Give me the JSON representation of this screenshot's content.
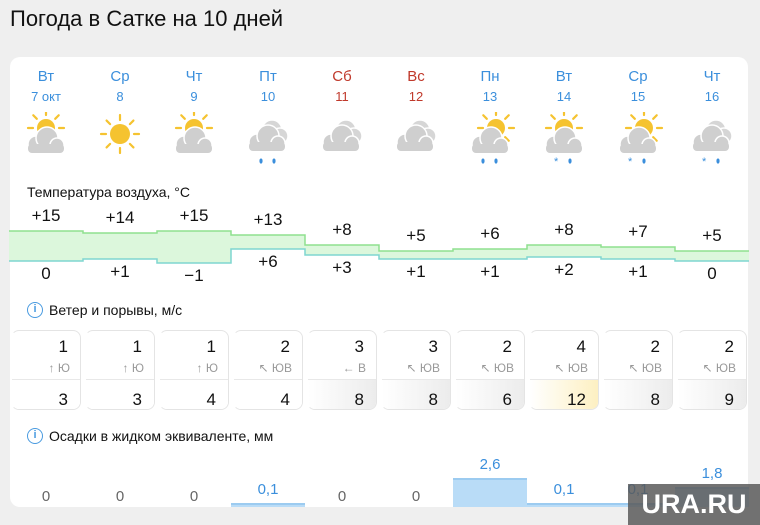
{
  "title": "Погода в Сатке на 10 дней",
  "colors": {
    "weekday": "#3b8fdc",
    "weekend": "#c0392b",
    "high_fill": "#dcf7dc",
    "high_line": "#8fe08f",
    "low_line": "#7fd6d0",
    "precip": "#b9dcf7",
    "gust_high": "#fdf0c2"
  },
  "days": [
    {
      "dow": "Вт",
      "date": "7 окт",
      "weekend": false,
      "icon": "partly-cloudy-icon",
      "precip_icon": ""
    },
    {
      "dow": "Ср",
      "date": "8",
      "weekend": false,
      "icon": "sun-icon",
      "precip_icon": ""
    },
    {
      "dow": "Чт",
      "date": "9",
      "weekend": false,
      "icon": "partly-cloudy-icon",
      "precip_icon": ""
    },
    {
      "dow": "Пт",
      "date": "10",
      "weekend": false,
      "icon": "cloudy-icon",
      "precip_icon": "rain"
    },
    {
      "dow": "Сб",
      "date": "11",
      "weekend": true,
      "icon": "cloudy-icon",
      "precip_icon": ""
    },
    {
      "dow": "Вс",
      "date": "12",
      "weekend": true,
      "icon": "cloudy-icon",
      "precip_icon": ""
    },
    {
      "dow": "Пн",
      "date": "13",
      "weekend": false,
      "icon": "partly-cloudy-icon",
      "precip_icon": "rain"
    },
    {
      "dow": "Вт",
      "date": "14",
      "weekend": false,
      "icon": "partly-cloudy-icon",
      "precip_icon": "sleet"
    },
    {
      "dow": "Ср",
      "date": "15",
      "weekend": false,
      "icon": "partly-cloudy-icon",
      "precip_icon": "sleet"
    },
    {
      "dow": "Чт",
      "date": "16",
      "weekend": false,
      "icon": "cloudy-icon",
      "precip_icon": "sleet"
    }
  ],
  "temperature": {
    "title": "Температура воздуха, °C",
    "high": [
      "+15",
      "+14",
      "+15",
      "+13",
      "+8",
      "+5",
      "+6",
      "+8",
      "+7",
      "+5"
    ],
    "low": [
      "0",
      "+1",
      "−1",
      "+6",
      "+3",
      "+1",
      "+1",
      "+2",
      "+1",
      "0"
    ]
  },
  "wind": {
    "title": "Ветер и порывы, м/с",
    "speed": [
      "1",
      "1",
      "1",
      "2",
      "3",
      "3",
      "2",
      "4",
      "2",
      "2"
    ],
    "dir": [
      "↑ Ю",
      "↑ Ю",
      "↑ Ю",
      "↖ ЮВ",
      "← В",
      "↖ ЮВ",
      "↖ ЮВ",
      "↖ ЮВ",
      "↖ ЮВ",
      "↖ ЮВ"
    ],
    "gust": [
      "3",
      "3",
      "4",
      "4",
      "8",
      "8",
      "6",
      "12",
      "8",
      "9"
    ]
  },
  "precip": {
    "title": "Осадки в жидком эквиваленте, мм",
    "values": [
      "0",
      "0",
      "0",
      "0,1",
      "0",
      "0",
      "2,6",
      "0,1",
      "0,1",
      "1,8"
    ]
  },
  "watermark": "URA.RU"
}
